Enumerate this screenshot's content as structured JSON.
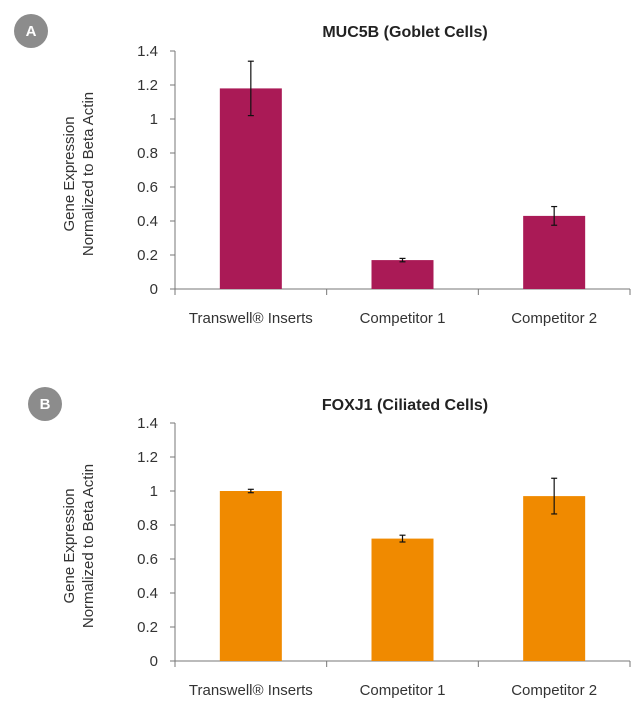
{
  "chart_data": [
    {
      "type": "bar",
      "badge": "A",
      "title": "MUC5B (Goblet Cells)",
      "ylabel_lines": [
        "Gene Expression",
        "Normalized to Beta Actin"
      ],
      "categories": [
        "Transwell® Inserts",
        "Competitor 1",
        "Competitor 2"
      ],
      "values": [
        1.18,
        0.17,
        0.43
      ],
      "errors": [
        0.16,
        0.01,
        0.055
      ],
      "ylim": [
        0,
        1.4
      ],
      "yticks": [
        "0",
        "0.2",
        "0.4",
        "0.6",
        "0.8",
        "1",
        "1.2",
        "1.4"
      ],
      "grid": false,
      "color": "#aa1a56"
    },
    {
      "type": "bar",
      "badge": "B",
      "title": "FOXJ1 (Ciliated Cells)",
      "ylabel_lines": [
        "Gene Expression",
        "Normalized to Beta Actin"
      ],
      "categories": [
        "Transwell® Inserts",
        "Competitor 1",
        "Competitor 2"
      ],
      "values": [
        1.0,
        0.72,
        0.97
      ],
      "errors": [
        0.01,
        0.02,
        0.105
      ],
      "ylim": [
        0,
        1.4
      ],
      "yticks": [
        "0",
        "0.2",
        "0.4",
        "0.6",
        "0.8",
        "1",
        "1.2",
        "1.4"
      ],
      "grid": false,
      "color": "#f08a00"
    }
  ],
  "badge_color": "#8c8c8c"
}
